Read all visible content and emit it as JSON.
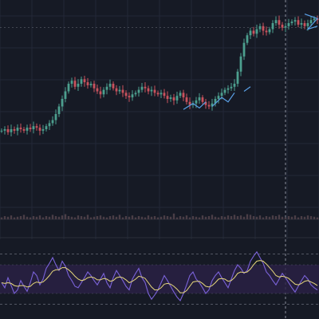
{
  "theme": {
    "background": "#161a25",
    "grid": "#232838",
    "separator": "#2a2e39",
    "up_color": "#4c9f8e",
    "down_color": "#c9525d",
    "overlay_line": "#2f8bd6",
    "overlay_line_alt": "#5aa0e6",
    "price_line": "#b8b8ff",
    "rsi_band_fill": "#2a2146",
    "rsi_line": "#7a62d8",
    "rsi_signal": "#e7d87c",
    "volume_color": "#4a3e46",
    "crosshair": "#8a8f9c"
  },
  "chart_data": {
    "type": "line",
    "panes": [
      {
        "name": "price",
        "kind": "candlestick",
        "ylim": [
          0,
          1
        ],
        "closes": [
          0.19,
          0.2,
          0.18,
          0.2,
          0.19,
          0.21,
          0.2,
          0.19,
          0.21,
          0.2,
          0.22,
          0.21,
          0.19,
          0.2,
          0.22,
          0.24,
          0.26,
          0.3,
          0.35,
          0.4,
          0.45,
          0.5,
          0.52,
          0.48,
          0.5,
          0.53,
          0.51,
          0.49,
          0.5,
          0.47,
          0.45,
          0.43,
          0.46,
          0.48,
          0.5,
          0.47,
          0.45,
          0.46,
          0.44,
          0.42,
          0.41,
          0.43,
          0.44,
          0.46,
          0.48,
          0.47,
          0.45,
          0.46,
          0.44,
          0.43,
          0.44,
          0.42,
          0.4,
          0.41,
          0.39,
          0.42,
          0.44,
          0.41,
          0.38,
          0.36,
          0.37,
          0.39,
          0.41,
          0.38,
          0.36,
          0.35,
          0.37,
          0.4,
          0.42,
          0.44,
          0.46,
          0.47,
          0.48,
          0.5,
          0.58,
          0.68,
          0.77,
          0.82,
          0.85,
          0.83,
          0.86,
          0.88,
          0.85,
          0.84,
          0.86,
          0.9,
          0.92,
          0.89,
          0.87,
          0.88,
          0.9,
          0.91,
          0.92,
          0.89,
          0.9,
          0.88,
          0.9,
          0.92,
          0.93,
          0.92
        ],
        "overlay_segments": [
          {
            "points": [
              [
                57,
                0.33
              ],
              [
                60,
                0.37
              ],
              [
                62,
                0.34
              ],
              [
                64,
                0.38
              ]
            ]
          },
          {
            "points": [
              [
                66,
                0.35
              ],
              [
                69,
                0.41
              ],
              [
                71,
                0.38
              ],
              [
                73,
                0.44
              ]
            ]
          },
          {
            "points": [
              [
                76,
                0.45
              ],
              [
                78,
                0.48
              ]
            ]
          },
          {
            "points": [
              [
                95,
                0.96
              ],
              [
                99,
                0.93
              ],
              [
                96,
                0.86
              ],
              [
                99,
                0.88
              ]
            ]
          }
        ]
      },
      {
        "name": "volume",
        "kind": "bars",
        "values": [
          0.3,
          0.5,
          0.4,
          0.6,
          0.3,
          0.4,
          0.5,
          0.7,
          0.4,
          0.3,
          0.5,
          0.4,
          0.6,
          0.3,
          0.5,
          0.4,
          0.7,
          0.5,
          0.4,
          0.6,
          0.8,
          0.5,
          0.4,
          0.3,
          0.6,
          0.5,
          0.4,
          0.7,
          0.3,
          0.4,
          0.5,
          0.6,
          0.4,
          0.3,
          0.5,
          0.6,
          0.4,
          0.7,
          0.3,
          0.5,
          0.4,
          0.6,
          0.3,
          0.5,
          0.4,
          0.3,
          0.6,
          0.4,
          0.5,
          0.3,
          0.4,
          0.6,
          0.5,
          0.4,
          0.9,
          0.3,
          0.5,
          0.4,
          0.6,
          0.3,
          0.5,
          0.4,
          0.3,
          0.6,
          0.4,
          0.5,
          0.7,
          0.4,
          0.3,
          0.5,
          0.4,
          0.6,
          0.5,
          0.7,
          0.5,
          0.6,
          0.4,
          0.8,
          0.7,
          0.5,
          0.4,
          0.6,
          0.3,
          0.5,
          0.4,
          0.6,
          0.5,
          0.7,
          0.4,
          0.3,
          0.5,
          0.4,
          0.6,
          0.3,
          0.5,
          0.4,
          0.6,
          0.5,
          0.4,
          0.3
        ]
      },
      {
        "name": "oscillator",
        "kind": "line",
        "ylim": [
          0,
          100
        ],
        "band": [
          30,
          70
        ],
        "levels": [
          85,
          15
        ],
        "raw": [
          45,
          38,
          52,
          41,
          30,
          35,
          48,
          40,
          33,
          45,
          60,
          55,
          42,
          50,
          65,
          72,
          80,
          70,
          62,
          75,
          68,
          55,
          48,
          40,
          38,
          45,
          52,
          60,
          55,
          48,
          42,
          50,
          58,
          45,
          38,
          52,
          62,
          55,
          48,
          40,
          35,
          50,
          58,
          65,
          52,
          45,
          30,
          22,
          28,
          35,
          45,
          55,
          48,
          40,
          32,
          25,
          20,
          30,
          42,
          55,
          60,
          50,
          45,
          38,
          30,
          35,
          48,
          55,
          60,
          52,
          45,
          38,
          50,
          62,
          70,
          65,
          58,
          62,
          75,
          82,
          88,
          80,
          72,
          60,
          55,
          48,
          42,
          50,
          58,
          52,
          45,
          38,
          32,
          40,
          48,
          55,
          50,
          42,
          38,
          35
        ],
        "signal": [
          45,
          44,
          45,
          44,
          41,
          40,
          41,
          41,
          39,
          40,
          44,
          46,
          45,
          46,
          50,
          55,
          61,
          63,
          63,
          66,
          66,
          63,
          59,
          54,
          50,
          48,
          49,
          52,
          53,
          52,
          49,
          49,
          51,
          50,
          47,
          48,
          52,
          53,
          52,
          49,
          45,
          47,
          50,
          54,
          53,
          51,
          45,
          39,
          35,
          35,
          38,
          43,
          44,
          43,
          40,
          36,
          31,
          31,
          34,
          40,
          46,
          47,
          47,
          44,
          40,
          39,
          41,
          45,
          50,
          51,
          50,
          47,
          48,
          52,
          58,
          60,
          59,
          60,
          64,
          70,
          75,
          76,
          75,
          71,
          66,
          61,
          55,
          53,
          54,
          53,
          51,
          47,
          43,
          42,
          44,
          47,
          48,
          46,
          44,
          41
        ]
      }
    ],
    "crosshair_index": 89,
    "grid": true
  }
}
